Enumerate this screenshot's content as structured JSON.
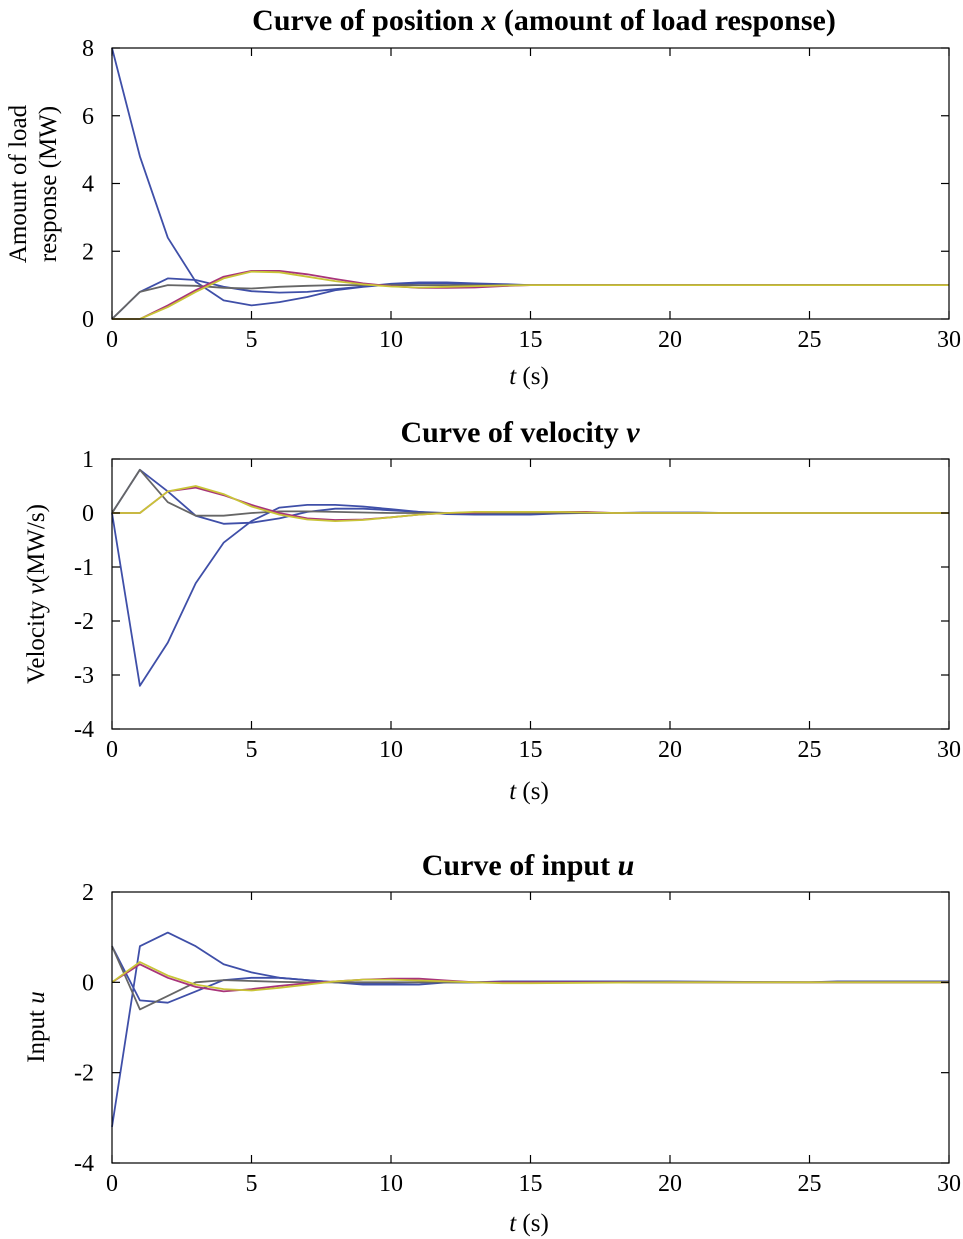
{
  "chart_data": [
    {
      "type": "line",
      "title": "Curve of position ",
      "title_var": "x",
      "title_suffix": " (amount of load response)",
      "ylabel_line1": "Amount of load",
      "ylabel_line2": "response (MW)",
      "xlabel_var": "t",
      "xlabel_unit": " (s)",
      "xlim": [
        0,
        30
      ],
      "ylim": [
        0,
        8
      ],
      "xticks": [
        0,
        5,
        10,
        15,
        20,
        25,
        30
      ],
      "yticks": [
        0,
        2,
        4,
        6,
        8
      ],
      "ytick_labels": [
        "0",
        "2",
        "4",
        "6",
        "8"
      ],
      "series": [
        {
          "name": "blue-1",
          "color": "#3f4fa8",
          "x": [
            0,
            1,
            2,
            3,
            4,
            5,
            6,
            7,
            8,
            9,
            10,
            11,
            12,
            13,
            14,
            15,
            30
          ],
          "y": [
            8,
            4.8,
            2.4,
            1.1,
            0.55,
            0.4,
            0.5,
            0.65,
            0.85,
            0.95,
            1.02,
            1.05,
            1.05,
            1.02,
            1.01,
            1,
            1
          ]
        },
        {
          "name": "blue-2",
          "color": "#3f4fa8",
          "x": [
            0,
            1,
            2,
            3,
            4,
            5,
            6,
            7,
            8,
            9,
            10,
            11,
            12,
            13,
            14,
            15,
            30
          ],
          "y": [
            0,
            0.8,
            1.2,
            1.15,
            0.95,
            0.82,
            0.78,
            0.8,
            0.88,
            0.96,
            1.04,
            1.08,
            1.08,
            1.05,
            1.03,
            1,
            1
          ]
        },
        {
          "name": "gray",
          "color": "#666666",
          "x": [
            0,
            1,
            2,
            3,
            4,
            5,
            6,
            7,
            8,
            9,
            10,
            11,
            12,
            13,
            14,
            15,
            30
          ],
          "y": [
            0,
            0.8,
            1.0,
            0.98,
            0.92,
            0.9,
            0.95,
            0.98,
            1.0,
            1.0,
            1.0,
            1.0,
            1.0,
            1.0,
            1.0,
            1,
            1
          ]
        },
        {
          "name": "magenta",
          "color": "#a8347a",
          "x": [
            0,
            1,
            2,
            3,
            4,
            5,
            6,
            7,
            8,
            9,
            10,
            11,
            12,
            13,
            14,
            15,
            30
          ],
          "y": [
            0,
            0,
            0.4,
            0.85,
            1.25,
            1.42,
            1.42,
            1.32,
            1.18,
            1.05,
            0.97,
            0.92,
            0.92,
            0.93,
            0.97,
            1,
            1
          ]
        },
        {
          "name": "yellow",
          "color": "#c9c437",
          "x": [
            0,
            1,
            2,
            3,
            4,
            5,
            6,
            7,
            8,
            9,
            10,
            11,
            12,
            13,
            14,
            15,
            30
          ],
          "y": [
            0,
            0,
            0.35,
            0.8,
            1.2,
            1.4,
            1.38,
            1.25,
            1.12,
            1.02,
            0.96,
            0.93,
            0.95,
            0.97,
            0.99,
            1,
            1
          ]
        }
      ]
    },
    {
      "type": "line",
      "title": "Curve of velocity ",
      "title_var": "v",
      "title_suffix": "",
      "ylabel_line1": "Velocity ",
      "ylabel_var": "v",
      "ylabel_unit": "(MW/s)",
      "xlabel_var": "t",
      "xlabel_unit": " (s)",
      "xlim": [
        0,
        30
      ],
      "ylim": [
        -4,
        1
      ],
      "xticks": [
        0,
        5,
        10,
        15,
        20,
        25,
        30
      ],
      "yticks": [
        -4,
        -3,
        -2,
        -1,
        0,
        1
      ],
      "ytick_labels": [
        "-4",
        "-3",
        "-2",
        "-1",
        "0",
        "1"
      ],
      "series": [
        {
          "name": "blue-1",
          "color": "#3f4fa8",
          "x": [
            0,
            1,
            2,
            3,
            4,
            5,
            6,
            7,
            8,
            9,
            10,
            11,
            12,
            13,
            14,
            15,
            16,
            17,
            18,
            19,
            20,
            21,
            22,
            30
          ],
          "y": [
            0,
            -3.2,
            -2.4,
            -1.3,
            -0.55,
            -0.15,
            0.1,
            0.15,
            0.15,
            0.12,
            0.07,
            0.02,
            -0.02,
            -0.03,
            -0.03,
            -0.03,
            -0.01,
            0,
            0,
            0.01,
            0.01,
            0.01,
            0,
            0
          ]
        },
        {
          "name": "blue-2",
          "color": "#3f4fa8",
          "x": [
            0,
            1,
            2,
            3,
            4,
            5,
            6,
            7,
            8,
            9,
            10,
            11,
            12,
            30
          ],
          "y": [
            0,
            0.8,
            0.4,
            -0.05,
            -0.2,
            -0.18,
            -0.1,
            0.02,
            0.08,
            0.08,
            0.05,
            0.02,
            0,
            0
          ]
        },
        {
          "name": "gray",
          "color": "#666666",
          "x": [
            0,
            1,
            2,
            3,
            4,
            5,
            6,
            7,
            8,
            9,
            10,
            11,
            12,
            30
          ],
          "y": [
            0,
            0.8,
            0.2,
            -0.05,
            -0.05,
            0.0,
            0.03,
            0.03,
            0.02,
            0.01,
            0,
            0,
            0,
            0
          ]
        },
        {
          "name": "magenta",
          "color": "#a8347a",
          "x": [
            0,
            1,
            2,
            3,
            4,
            5,
            6,
            7,
            8,
            9,
            10,
            11,
            12,
            13,
            14,
            15,
            16,
            17,
            18,
            30
          ],
          "y": [
            0,
            0,
            0.4,
            0.47,
            0.33,
            0.15,
            0.0,
            -0.1,
            -0.13,
            -0.12,
            -0.08,
            -0.03,
            0,
            0.01,
            0.02,
            0.02,
            0.02,
            0.02,
            0,
            0
          ]
        },
        {
          "name": "yellow",
          "color": "#c9c437",
          "x": [
            0,
            1,
            2,
            3,
            4,
            5,
            6,
            7,
            8,
            9,
            10,
            11,
            12,
            13,
            14,
            15,
            16,
            17,
            18,
            30
          ],
          "y": [
            0,
            0,
            0.4,
            0.5,
            0.35,
            0.12,
            -0.03,
            -0.12,
            -0.15,
            -0.13,
            -0.08,
            -0.03,
            0,
            0.02,
            0.02,
            0.02,
            0.02,
            0.01,
            0,
            0
          ]
        }
      ]
    },
    {
      "type": "line",
      "title": "Curve of input ",
      "title_var": "u",
      "title_suffix": "",
      "ylabel_line1": "Input ",
      "ylabel_var": "u",
      "ylabel_unit": "",
      "xlabel_var": "t",
      "xlabel_unit": " (s)",
      "xlim": [
        0,
        30
      ],
      "ylim": [
        -4,
        2
      ],
      "xticks": [
        0,
        5,
        10,
        15,
        20,
        25,
        30
      ],
      "yticks": [
        -4,
        -2,
        0,
        2
      ],
      "ytick_labels": [
        "-4",
        "-2",
        "0",
        "2"
      ],
      "series": [
        {
          "name": "blue-1",
          "color": "#3f4fa8",
          "x": [
            0,
            1,
            2,
            3,
            4,
            5,
            6,
            7,
            8,
            9,
            10,
            11,
            12,
            13,
            14,
            15,
            20,
            25,
            26,
            30
          ],
          "y": [
            -3.2,
            0.8,
            1.1,
            0.8,
            0.4,
            0.22,
            0.1,
            0.05,
            0.0,
            -0.05,
            -0.05,
            -0.05,
            0.0,
            0.0,
            0.02,
            0.02,
            0.02,
            0.0,
            0.02,
            0.02
          ]
        },
        {
          "name": "blue-2",
          "color": "#3f4fa8",
          "x": [
            0,
            1,
            2,
            3,
            4,
            5,
            6,
            7,
            8,
            9,
            10,
            11,
            12,
            13,
            14,
            15,
            30
          ],
          "y": [
            0.8,
            -0.4,
            -0.45,
            -0.2,
            0.05,
            0.1,
            0.1,
            0.05,
            0.0,
            -0.02,
            -0.02,
            0.0,
            0.0,
            0.0,
            0.0,
            0.0,
            0.0
          ]
        },
        {
          "name": "gray",
          "color": "#666666",
          "x": [
            0,
            1,
            2,
            3,
            4,
            5,
            6,
            7,
            8,
            10,
            12,
            15,
            30
          ],
          "y": [
            0.8,
            -0.6,
            -0.3,
            0.0,
            0.05,
            0.03,
            0.01,
            0.0,
            0.0,
            0.0,
            0.0,
            0.0,
            0.0
          ]
        },
        {
          "name": "magenta",
          "color": "#a8347a",
          "x": [
            0,
            1,
            2,
            3,
            4,
            5,
            6,
            7,
            8,
            9,
            10,
            11,
            12,
            13,
            14,
            15,
            30
          ],
          "y": [
            0,
            0.4,
            0.1,
            -0.1,
            -0.2,
            -0.15,
            -0.08,
            -0.02,
            0.02,
            0.06,
            0.08,
            0.08,
            0.04,
            0.0,
            0.0,
            0.0,
            0.0
          ]
        },
        {
          "name": "yellow",
          "color": "#c9c437",
          "x": [
            0,
            1,
            2,
            3,
            4,
            5,
            6,
            7,
            8,
            9,
            10,
            11,
            12,
            13,
            14,
            15,
            20,
            25,
            30
          ],
          "y": [
            0,
            0.45,
            0.15,
            -0.05,
            -0.15,
            -0.18,
            -0.12,
            -0.05,
            0.02,
            0.06,
            0.06,
            0.04,
            0.02,
            0.0,
            -0.02,
            -0.02,
            0.0,
            0.0,
            0.0
          ]
        }
      ]
    }
  ]
}
